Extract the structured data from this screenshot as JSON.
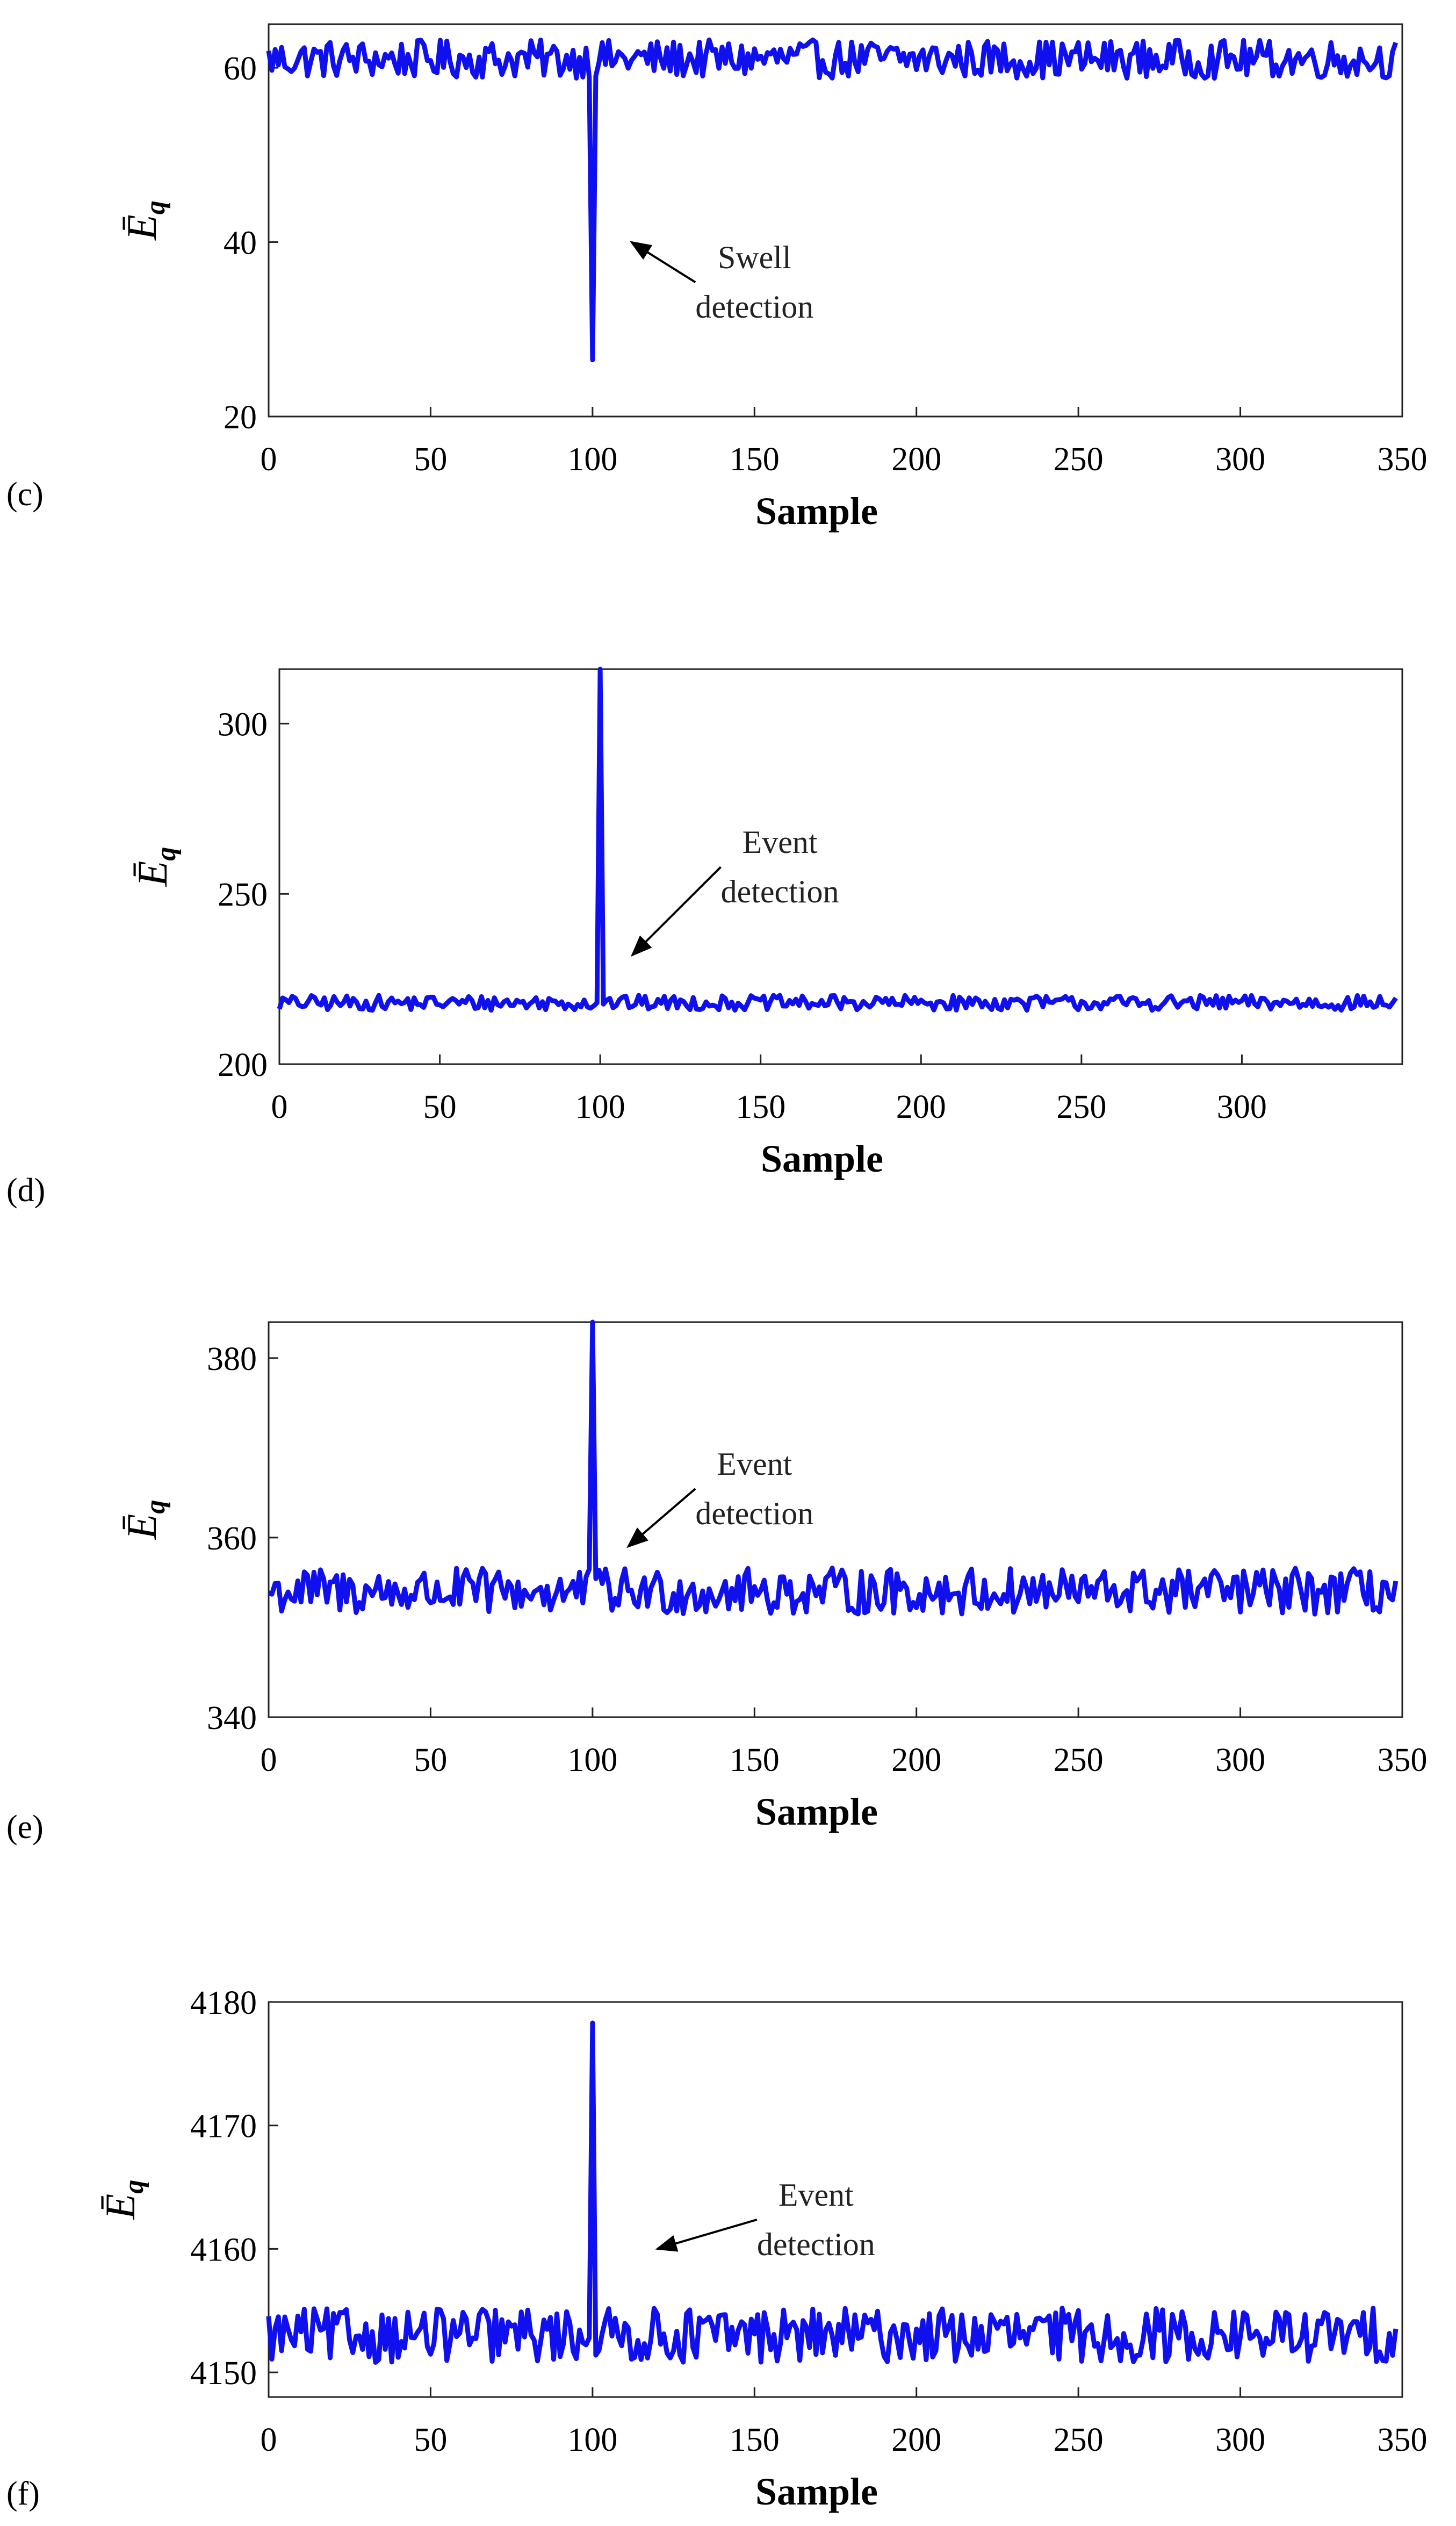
{
  "chart_data": [
    {
      "id": "c",
      "type": "line",
      "panel_label": "(c)",
      "xlabel": "Sample",
      "ylabel": "Ē",
      "ylabel_sub": "q",
      "xlim": [
        0,
        350
      ],
      "ylim": [
        20,
        65
      ],
      "xticks": [
        0,
        50,
        100,
        150,
        200,
        250,
        300,
        350
      ],
      "yticks": [
        20,
        40,
        60
      ],
      "series_color": "#1010ee",
      "baseline": 61,
      "noise_amplitude": 2.2,
      "event": {
        "x": 100,
        "value": 26.5,
        "direction": "down"
      },
      "annotation": {
        "lines": [
          "Swell",
          "detection"
        ],
        "target": [
          112,
          40
        ],
        "text_at": [
          150,
          37
        ]
      }
    },
    {
      "id": "d",
      "type": "line",
      "panel_label": "(d)",
      "xlabel": "Sample",
      "ylabel": "Ē",
      "ylabel_sub": "q",
      "xlim": [
        0,
        350
      ],
      "ylim": [
        200,
        316
      ],
      "xticks": [
        0,
        50,
        100,
        150,
        200,
        250,
        300
      ],
      "yticks": [
        200,
        250,
        300
      ],
      "series_color": "#1010ee",
      "baseline": 218,
      "noise_amplitude": 2.2,
      "event": {
        "x": 100,
        "value": 316,
        "direction": "up"
      },
      "annotation": {
        "lines": [
          "Event",
          "detection"
        ],
        "target": [
          110,
          232
        ],
        "text_at": [
          156,
          262
        ]
      }
    },
    {
      "id": "e",
      "type": "line",
      "panel_label": "(e)",
      "xlabel": "Sample",
      "ylabel": "Ē",
      "ylabel_sub": "q",
      "xlim": [
        0,
        350
      ],
      "ylim": [
        340,
        384
      ],
      "xticks": [
        0,
        50,
        100,
        150,
        200,
        250,
        300,
        350
      ],
      "yticks": [
        340,
        360,
        380
      ],
      "series_color": "#1010ee",
      "baseline": 354,
      "noise_amplitude": 2.6,
      "event": {
        "x": 100,
        "value": 384.5,
        "direction": "up"
      },
      "annotation": {
        "lines": [
          "Event",
          "detection"
        ],
        "target": [
          111,
          359
        ],
        "text_at": [
          150,
          367
        ]
      }
    },
    {
      "id": "f",
      "type": "line",
      "panel_label": "(f)",
      "xlabel": "Sample",
      "ylabel": "Ē",
      "ylabel_sub": "q",
      "xlim": [
        0,
        350
      ],
      "ylim": [
        4148,
        4180
      ],
      "xticks": [
        0,
        50,
        100,
        150,
        200,
        250,
        300,
        350
      ],
      "yticks": [
        4150,
        4160,
        4170,
        4180
      ],
      "series_color": "#1010ee",
      "baseline": 4153,
      "noise_amplitude": 2.2,
      "event": {
        "x": 100,
        "value": 4178.3,
        "direction": "up"
      },
      "annotation": {
        "lines": [
          "Event",
          "detection"
        ],
        "target": [
          120,
          4160
        ],
        "text_at": [
          169,
          4163.5
        ]
      }
    }
  ]
}
